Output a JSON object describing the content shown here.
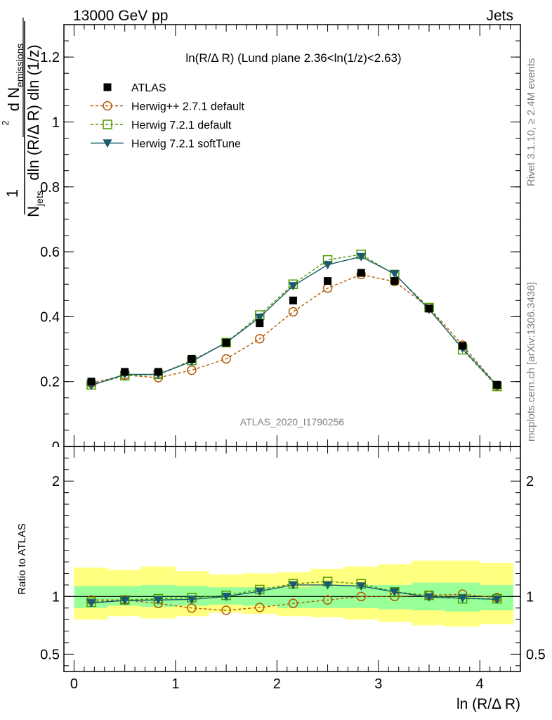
{
  "header": {
    "left": "13000 GeV pp",
    "right": "Jets"
  },
  "side_labels": {
    "rivet": "Rivet 3.1.10, ≥ 2.4M events",
    "mcplots": "mcplots.cern.ch [arXiv:1306.3436]"
  },
  "chart_data": [
    {
      "type": "scatter",
      "title": "ln(R/Δ R) (Lund plane 2.36<ln(1/z)<2.63)",
      "watermark": "ATLAS_2020_I1790256",
      "xlabel": "ln (R/Δ R)",
      "ylabel": {
        "prefix": "1",
        "n_sym": "N",
        "n_sub": "jets",
        "den_rest": "dln (R/Δ R) dln (1/z)",
        "d_sup": "2",
        "num_main": "d  N",
        "num_sub": "emissions"
      },
      "xlim": [
        -0.1,
        4.4
      ],
      "ylim": [
        0,
        1.3
      ],
      "yticks": [
        0.2,
        0.4,
        0.6,
        0.8,
        1,
        1.2
      ],
      "ytick_labels": [
        "0.2",
        "0.4",
        "0.6",
        "0.8",
        "1",
        "1.2"
      ],
      "xticks": [
        0,
        1,
        2,
        3,
        4
      ],
      "xtick_labels": [
        "0",
        "1",
        "2",
        "3",
        "4"
      ],
      "legend_position": "top-left",
      "x": [
        0.17,
        0.5,
        0.83,
        1.16,
        1.5,
        1.83,
        2.16,
        2.5,
        2.83,
        3.16,
        3.5,
        3.83,
        4.17
      ],
      "series": [
        {
          "name": "ATLAS",
          "color": "#000000",
          "marker": "filled-square",
          "line": "none",
          "values": [
            0.2,
            0.23,
            0.23,
            0.27,
            0.32,
            0.38,
            0.45,
            0.51,
            0.535,
            0.51,
            0.425,
            0.31,
            0.19
          ]
        },
        {
          "name": "Herwig++ 2.7.1 default",
          "color": "#b35900",
          "marker": "open-circle",
          "line": "dashed",
          "values": [
            0.195,
            0.22,
            0.212,
            0.235,
            0.27,
            0.332,
            0.415,
            0.488,
            0.53,
            0.508,
            0.428,
            0.312,
            0.188
          ]
        },
        {
          "name": "Herwig 7.2.1 default",
          "color": "#4d9900",
          "marker": "open-square",
          "line": "dashed",
          "values": [
            0.19,
            0.218,
            0.222,
            0.265,
            0.32,
            0.405,
            0.5,
            0.575,
            0.592,
            0.53,
            0.428,
            0.298,
            0.185
          ]
        },
        {
          "name": "Herwig 7.2.1 softTune",
          "color": "#1a5a6e",
          "marker": "filled-triangle-down",
          "line": "solid",
          "values": [
            0.188,
            0.222,
            0.222,
            0.262,
            0.32,
            0.398,
            0.495,
            0.56,
            0.585,
            0.532,
            0.422,
            0.302,
            0.187
          ]
        }
      ]
    },
    {
      "type": "scatter",
      "ylabel": "Ratio to ATLAS",
      "xlim": [
        -0.1,
        4.4
      ],
      "ylim": [
        0.35,
        2.3
      ],
      "yticks": [
        0.5,
        1,
        2
      ],
      "ytick_labels": [
        "0.5",
        "1",
        "2"
      ],
      "x_edges": [
        0,
        0.33,
        0.66,
        1.0,
        1.33,
        1.66,
        2.0,
        2.33,
        2.66,
        3.0,
        3.33,
        3.66,
        4.0,
        4.33
      ],
      "band_inner": {
        "color": "#99ff99",
        "low": [
          0.9,
          0.92,
          0.91,
          0.92,
          0.93,
          0.92,
          0.9,
          0.9,
          0.9,
          0.89,
          0.88,
          0.87,
          0.88
        ],
        "high": [
          1.09,
          1.09,
          1.1,
          1.09,
          1.08,
          1.08,
          1.08,
          1.09,
          1.1,
          1.1,
          1.12,
          1.12,
          1.1
        ]
      },
      "band_outer": {
        "color": "#ffff80",
        "low": [
          0.8,
          0.83,
          0.81,
          0.83,
          0.86,
          0.85,
          0.83,
          0.82,
          0.8,
          0.78,
          0.75,
          0.74,
          0.76
        ],
        "high": [
          1.25,
          1.23,
          1.26,
          1.22,
          1.19,
          1.2,
          1.21,
          1.24,
          1.26,
          1.28,
          1.31,
          1.31,
          1.29
        ]
      },
      "series": [
        {
          "name": "Herwig++ 2.7.1 default",
          "color": "#b35900",
          "marker": "open-circle",
          "line": "dashed",
          "values": [
            0.97,
            0.97,
            0.94,
            0.9,
            0.88,
            0.905,
            0.94,
            0.97,
            1.0,
            1.0,
            1.01,
            1.02,
            0.99
          ]
        },
        {
          "name": "Herwig 7.2.1 default",
          "color": "#4d9900",
          "marker": "open-square",
          "line": "dashed",
          "values": [
            0.95,
            0.97,
            0.98,
            0.99,
            1.01,
            1.06,
            1.11,
            1.13,
            1.11,
            1.04,
            1.01,
            0.98,
            0.98
          ]
        },
        {
          "name": "Herwig 7.2.1 softTune",
          "color": "#1a5a6e",
          "marker": "filled-triangle-down",
          "line": "solid",
          "values": [
            0.945,
            0.965,
            0.97,
            0.975,
            1.0,
            1.045,
            1.1,
            1.1,
            1.09,
            1.04,
            0.995,
            0.985,
            0.975
          ]
        }
      ]
    }
  ]
}
